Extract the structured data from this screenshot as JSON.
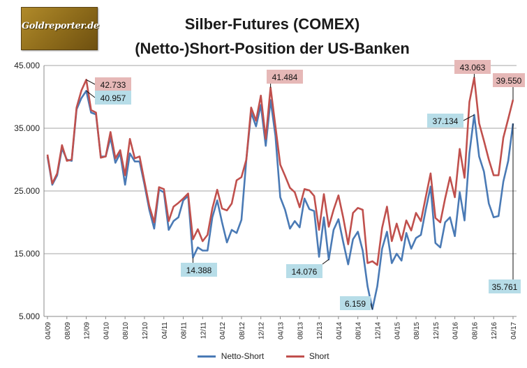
{
  "logo": {
    "text": "Goldreporter.de"
  },
  "chart_data": {
    "type": "line",
    "title": "Silber-Futures (COMEX)",
    "subtitle": "(Netto-)Short-Position der US-Banken",
    "xlabel": "",
    "ylabel": "",
    "ylim": [
      5000,
      45000
    ],
    "y_ticks": [
      5000,
      15000,
      25000,
      35000,
      45000
    ],
    "y_tick_labels": [
      "5.000",
      "15.000",
      "25.000",
      "35.000",
      "45.000"
    ],
    "x_tick_labels": [
      "04/09",
      "08/09",
      "12/09",
      "04/10",
      "08/10",
      "12/10",
      "04/11",
      "08/11",
      "12/11",
      "04/12",
      "08/12",
      "12/12",
      "04/13",
      "08/13",
      "12/13",
      "04/14",
      "08/14",
      "12/14",
      "04/15",
      "08/15",
      "12/15",
      "04/16",
      "08/16",
      "12/16",
      "04/17"
    ],
    "grid": "horizontal",
    "legend": "bottom",
    "series": [
      {
        "name": "Netto-Short",
        "color": "#4a7ab5",
        "values": [
          30500,
          26000,
          27500,
          31800,
          30000,
          29800,
          38000,
          39800,
          40957,
          37500,
          37200,
          30500,
          30500,
          33500,
          29500,
          31000,
          26000,
          31000,
          29700,
          29700,
          26000,
          22000,
          19000,
          25200,
          24800,
          18800,
          20200,
          20800,
          23500,
          24200,
          14388,
          16000,
          15500,
          15500,
          20800,
          23500,
          20000,
          16800,
          18800,
          18300,
          20400,
          30000,
          37500,
          35300,
          38700,
          32200,
          39500,
          33800,
          24000,
          22000,
          19000,
          20200,
          19200,
          23800,
          22100,
          21800,
          14500,
          20800,
          14076,
          18800,
          20500,
          16800,
          13300,
          17300,
          18500,
          15500,
          9800,
          6159,
          9800,
          15800,
          18500,
          13500,
          15000,
          13900,
          18300,
          15800,
          17500,
          18000,
          22000,
          25700,
          16700,
          16000,
          20000,
          20800,
          17800,
          24800,
          20300,
          31000,
          37134,
          30500,
          28100,
          23000,
          20800,
          21000,
          26500,
          29800,
          35761
        ]
      },
      {
        "name": "Short",
        "color": "#c0504d",
        "values": [
          30800,
          26200,
          27800,
          32300,
          29800,
          30000,
          38300,
          41000,
          42733,
          37900,
          37500,
          30300,
          30500,
          34400,
          30200,
          31500,
          27500,
          33300,
          30200,
          30500,
          26500,
          22600,
          20000,
          25600,
          25300,
          20200,
          22500,
          23100,
          23800,
          24600,
          17300,
          18900,
          17000,
          18000,
          22200,
          25200,
          22200,
          21900,
          23000,
          26700,
          27200,
          30000,
          38300,
          36200,
          40200,
          33300,
          41484,
          35300,
          29200,
          27400,
          25500,
          24800,
          22400,
          25300,
          25100,
          24200,
          18800,
          24500,
          19300,
          22000,
          24300,
          20700,
          16500,
          21500,
          22300,
          22000,
          13500,
          13800,
          13200,
          19100,
          22500,
          17000,
          19800,
          17100,
          20300,
          18700,
          21500,
          20200,
          24000,
          27800,
          20700,
          20000,
          23800,
          27200,
          24000,
          31700,
          27100,
          39200,
          43063,
          35800,
          33000,
          30000,
          27500,
          27500,
          33500,
          36500,
          39550
        ]
      }
    ],
    "annotations": [
      {
        "label": "42.733",
        "series": "Short",
        "value": 42733
      },
      {
        "label": "40.957",
        "series": "Netto-Short",
        "value": 40957
      },
      {
        "label": "14.388",
        "series": "Netto-Short",
        "value": 14388
      },
      {
        "label": "41.484",
        "series": "Short",
        "value": 41484
      },
      {
        "label": "14.076",
        "series": "Netto-Short",
        "value": 14076
      },
      {
        "label": "6.159",
        "series": "Netto-Short",
        "value": 6159
      },
      {
        "label": "43.063",
        "series": "Short",
        "value": 43063
      },
      {
        "label": "37.134",
        "series": "Netto-Short",
        "value": 37134
      },
      {
        "label": "39.550",
        "series": "Short",
        "value": 39550
      },
      {
        "label": "35.761",
        "series": "Netto-Short",
        "value": 35761
      }
    ]
  }
}
